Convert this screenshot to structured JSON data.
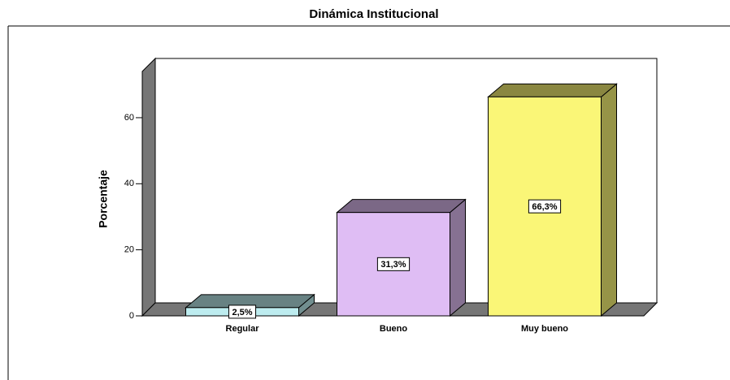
{
  "chart_data": {
    "type": "bar3d",
    "title": "Dinámica Institucional",
    "y_label": "Porcentaje",
    "categories": [
      "Regular",
      "Bueno",
      "Muy bueno"
    ],
    "values": [
      2.5,
      31.3,
      66.3
    ],
    "value_labels": [
      "2,5%",
      "31,3%",
      "66,3%"
    ],
    "colors": [
      "#bdecef",
      "#dfbdf4",
      "#faf677"
    ],
    "ylim": [
      0,
      74
    ],
    "yticks": [
      0,
      20,
      40,
      60
    ]
  }
}
